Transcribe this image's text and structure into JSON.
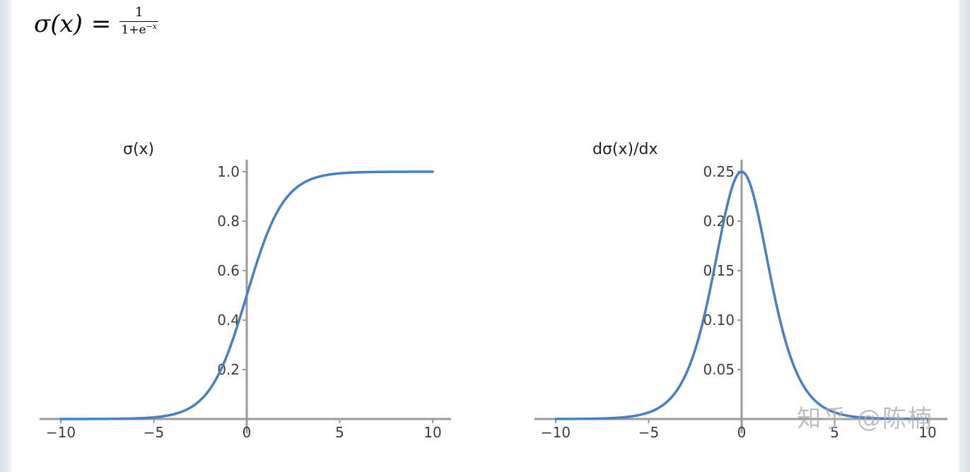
{
  "formula": {
    "lhs": "σ(x)",
    "eq": "=",
    "numerator": "1",
    "denominator_base": "1+e",
    "denominator_exp": "−x"
  },
  "watermark": "知乎 @陈楠",
  "colors": {
    "line": "#4a7fbf",
    "axis": "#9a9a9a",
    "text": "#3d3d3d"
  },
  "chart_data": [
    {
      "type": "line",
      "title": "σ(x)",
      "function": "sigmoid",
      "xlim": [
        -10,
        10
      ],
      "ylim": [
        0,
        1.0
      ],
      "xticks": [
        -10,
        -5,
        0,
        5,
        10
      ],
      "xtick_labels": [
        "−10",
        "−5",
        "0",
        "5",
        "10"
      ],
      "yticks": [
        0.2,
        0.4,
        0.6,
        0.8,
        1.0
      ],
      "ytick_labels": [
        "0.2",
        "0.4",
        "0.6",
        "0.8",
        "1.0"
      ],
      "x": [
        -10,
        -8,
        -6,
        -5,
        -4,
        -3,
        -2,
        -1,
        0,
        1,
        2,
        3,
        4,
        5,
        6,
        8,
        10
      ],
      "y": [
        5e-05,
        0.0003,
        0.0025,
        0.0067,
        0.018,
        0.047,
        0.119,
        0.269,
        0.5,
        0.731,
        0.881,
        0.953,
        0.982,
        0.993,
        0.9975,
        0.9997,
        0.99995
      ],
      "grid": false
    },
    {
      "type": "line",
      "title": "dσ(x)/dx",
      "function": "sigmoid_derivative",
      "xlim": [
        -10,
        10
      ],
      "ylim": [
        0,
        0.25
      ],
      "xticks": [
        -10,
        -5,
        0,
        5,
        10
      ],
      "xtick_labels": [
        "−10",
        "−5",
        "0",
        "5",
        "10"
      ],
      "yticks": [
        0.05,
        0.1,
        0.15,
        0.2,
        0.25
      ],
      "ytick_labels": [
        "0.05",
        "0.10",
        "0.15",
        "0.20",
        "0.25"
      ],
      "x": [
        -10,
        -8,
        -6,
        -5,
        -4,
        -3,
        -2,
        -1,
        0,
        1,
        2,
        3,
        4,
        5,
        6,
        8,
        10
      ],
      "y": [
        5e-05,
        0.0003,
        0.0025,
        0.0066,
        0.0177,
        0.0452,
        0.105,
        0.1966,
        0.25,
        0.1966,
        0.105,
        0.0452,
        0.0177,
        0.0066,
        0.0025,
        0.0003,
        5e-05
      ],
      "grid": false
    }
  ]
}
